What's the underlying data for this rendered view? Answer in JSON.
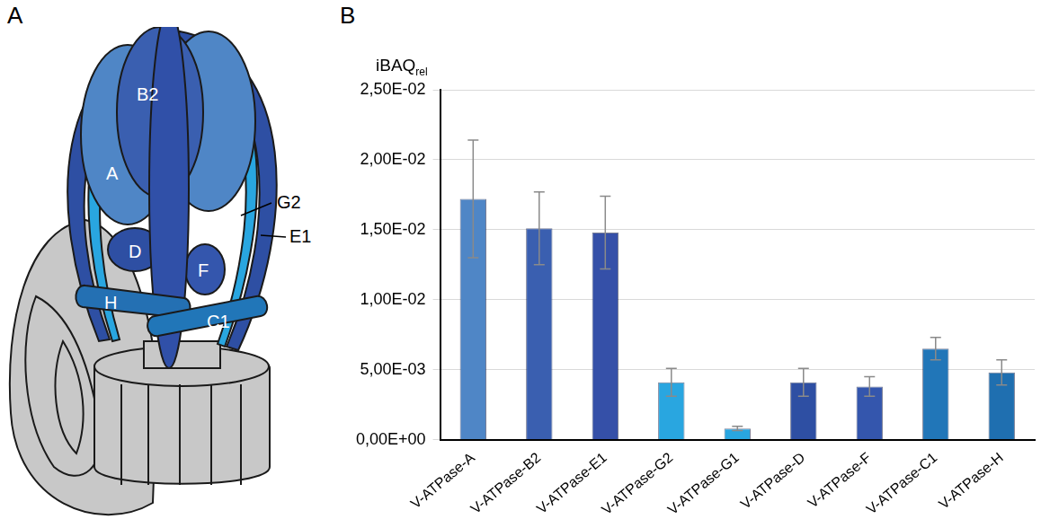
{
  "panel_labels": [
    "A",
    "B"
  ],
  "diagram_labels": [
    "A",
    "B2",
    "D",
    "H",
    "F",
    "C1",
    "G2",
    "E1"
  ],
  "chart_data": {
    "type": "bar",
    "ylabel": "iBAQ",
    "ylabel_subscript": "rel",
    "categories": [
      "V-ATPase-A",
      "V-ATPase-B2",
      "V-ATPase-E1",
      "V-ATPase-G2",
      "V-ATPase-G1",
      "V-ATPase-D",
      "V-ATPase-F",
      "V-ATPase-C1",
      "V-ATPase-H"
    ],
    "values": [
      0.0172,
      0.0151,
      0.0148,
      0.0041,
      0.0008,
      0.0041,
      0.0038,
      0.0065,
      0.0048
    ],
    "errors": [
      0.0042,
      0.0026,
      0.0026,
      0.001,
      0.00015,
      0.001,
      0.0007,
      0.0008,
      0.0009
    ],
    "colors": [
      "#4f86c6",
      "#3a5fb0",
      "#3550a8",
      "#29a6e0",
      "#29a6e0",
      "#2e4fa3",
      "#3456ad",
      "#2176b8",
      "#1f6fb0"
    ],
    "ylim": [
      0,
      0.025
    ],
    "yticks": [
      {
        "value": 0,
        "label": "0,00E+00"
      },
      {
        "value": 0.005,
        "label": "5,00E-03"
      },
      {
        "value": 0.01,
        "label": "1,00E-02"
      },
      {
        "value": 0.015,
        "label": "1,50E-02"
      },
      {
        "value": 0.02,
        "label": "2,00E-02"
      },
      {
        "value": 0.025,
        "label": "2,50E-02"
      }
    ],
    "grid": true
  }
}
